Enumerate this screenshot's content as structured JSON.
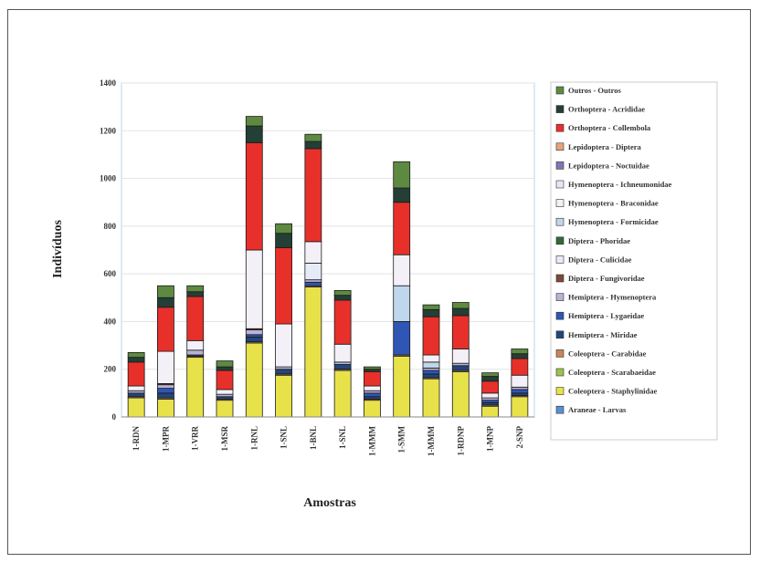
{
  "chart_data": {
    "type": "bar",
    "stacked": true,
    "xlabel": "Amostras",
    "ylabel": "Indivíduos",
    "ylim": [
      0,
      1400
    ],
    "yticks": [
      0,
      200,
      400,
      600,
      800,
      1000,
      1200,
      1400
    ],
    "grid": true,
    "legend_position": "right",
    "categories": [
      "1-RDN",
      "1-MPR",
      "1-VRR",
      "1-MSR",
      "1-RNL",
      "1-SNL",
      "1-BNL",
      "1-SNL",
      "1-MMM",
      "1-SMM",
      "1-MMM",
      "1-RDNP",
      "1-MNP",
      "2-SNP"
    ],
    "series": [
      {
        "name": "Araneae - Larvas",
        "color": "#5b8fce",
        "values": [
          0,
          0,
          0,
          0,
          0,
          0,
          0,
          0,
          0,
          0,
          0,
          0,
          0,
          0
        ]
      },
      {
        "name": "Coleoptera - Staphylinidae",
        "color": "#e8e24a",
        "values": [
          80,
          75,
          250,
          70,
          310,
          175,
          545,
          195,
          70,
          255,
          160,
          190,
          45,
          85
        ]
      },
      {
        "name": "Coleoptera - Scarabaeidae",
        "color": "#9bc34d",
        "values": [
          0,
          0,
          0,
          0,
          0,
          0,
          0,
          0,
          0,
          0,
          0,
          0,
          0,
          0
        ]
      },
      {
        "name": "Coleoptera - Carabidae",
        "color": "#c9855a",
        "values": [
          5,
          5,
          5,
          5,
          5,
          5,
          5,
          5,
          5,
          5,
          5,
          5,
          5,
          5
        ]
      },
      {
        "name": "Hemiptera - Miridae",
        "color": "#23467a",
        "values": [
          15,
          20,
          5,
          10,
          20,
          20,
          0,
          20,
          10,
          0,
          15,
          20,
          10,
          10
        ]
      },
      {
        "name": "Hemiptera - Lygaeidae",
        "color": "#2f56b5",
        "values": [
          0,
          20,
          0,
          0,
          10,
          0,
          15,
          0,
          15,
          140,
          15,
          0,
          10,
          15
        ]
      },
      {
        "name": "Hemiptera - Hymenoptera",
        "color": "#b9b2d6",
        "values": [
          10,
          15,
          20,
          10,
          20,
          10,
          10,
          10,
          10,
          0,
          10,
          10,
          10,
          10
        ]
      },
      {
        "name": "Diptera - Fungivoridae",
        "color": "#7a4b35",
        "values": [
          0,
          5,
          0,
          0,
          5,
          0,
          0,
          0,
          0,
          0,
          0,
          0,
          0,
          0
        ]
      },
      {
        "name": "Diptera - Culicidae",
        "color": "#e6ecf7",
        "values": [
          0,
          0,
          0,
          0,
          0,
          0,
          70,
          0,
          0,
          0,
          0,
          0,
          0,
          0
        ]
      },
      {
        "name": "Diptera - Phoridae",
        "color": "#33683a",
        "values": [
          0,
          0,
          0,
          0,
          0,
          0,
          0,
          0,
          0,
          0,
          0,
          0,
          0,
          0
        ]
      },
      {
        "name": "Hymenoptera - Formicidae",
        "color": "#c0d6ec",
        "values": [
          0,
          0,
          0,
          0,
          0,
          0,
          0,
          0,
          0,
          150,
          25,
          0,
          0,
          0
        ]
      },
      {
        "name": "Hymenoptera - Braconidae",
        "color": "#f4f0f7",
        "values": [
          20,
          135,
          40,
          20,
          330,
          180,
          90,
          75,
          20,
          130,
          30,
          60,
          20,
          50
        ]
      },
      {
        "name": "Hymenoptera - Ichneumonidae",
        "color": "#e5e8f4",
        "values": [
          0,
          0,
          0,
          0,
          0,
          0,
          0,
          0,
          0,
          0,
          0,
          0,
          0,
          0
        ]
      },
      {
        "name": "Lepidoptera - Noctuidae",
        "color": "#8374b5",
        "values": [
          0,
          0,
          0,
          0,
          0,
          0,
          0,
          0,
          0,
          0,
          0,
          0,
          0,
          0
        ]
      },
      {
        "name": "Lepidoptera - Diptera",
        "color": "#e7a37b",
        "values": [
          0,
          0,
          0,
          0,
          0,
          0,
          0,
          0,
          0,
          0,
          0,
          0,
          0,
          0
        ]
      },
      {
        "name": "Orthoptera - Collembola",
        "color": "#e8302a",
        "values": [
          100,
          185,
          185,
          80,
          450,
          320,
          390,
          185,
          60,
          220,
          160,
          140,
          50,
          70
        ]
      },
      {
        "name": "Orthoptera - Acrididae",
        "color": "#243f35",
        "values": [
          20,
          40,
          20,
          15,
          70,
          60,
          30,
          20,
          10,
          60,
          30,
          30,
          20,
          20
        ]
      },
      {
        "name": "Outros - Outros",
        "color": "#5d8a40",
        "values": [
          20,
          50,
          25,
          25,
          40,
          40,
          30,
          20,
          10,
          110,
          20,
          25,
          15,
          20
        ]
      }
    ]
  }
}
